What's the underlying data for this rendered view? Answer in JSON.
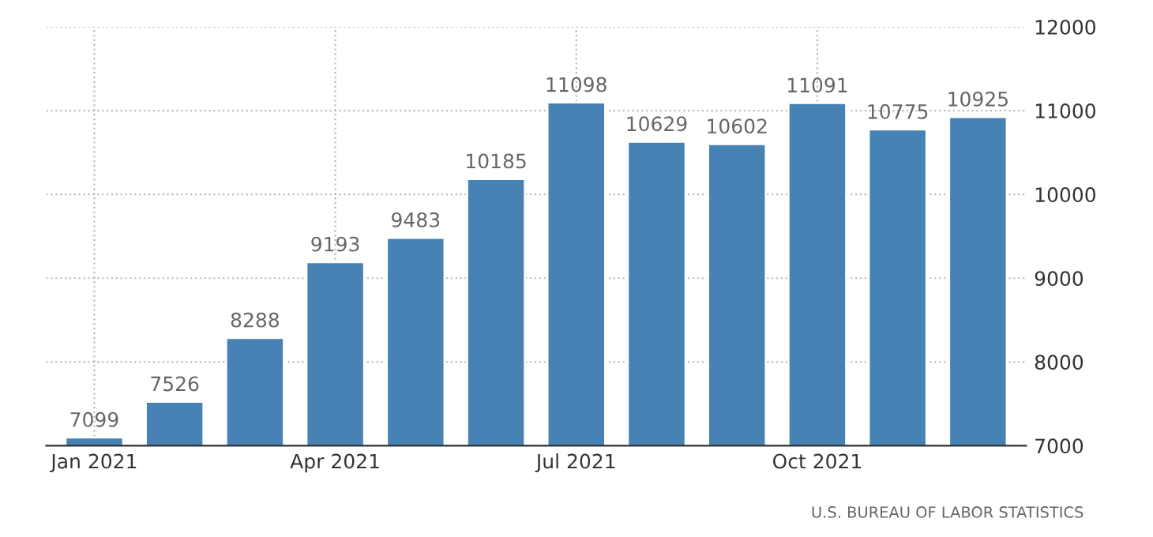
{
  "chart_data": {
    "type": "bar",
    "categories": [
      "Jan 2021",
      null,
      null,
      "Apr 2021",
      null,
      null,
      "Jul 2021",
      null,
      null,
      "Oct 2021",
      null,
      null
    ],
    "series": [
      {
        "color": "#4682b4",
        "values": [
          7099,
          7526,
          8288,
          9193,
          9483,
          10185,
          11098,
          10629,
          10602,
          11091,
          10775,
          10925
        ]
      }
    ],
    "ylim": [
      7000,
      12000
    ],
    "yticks": [
      7000,
      8000,
      9000,
      10000,
      11000,
      12000
    ],
    "data_labels": true,
    "grid": true,
    "annotations": [
      "U.S. BUREAU OF LABOR STATISTICS"
    ]
  }
}
